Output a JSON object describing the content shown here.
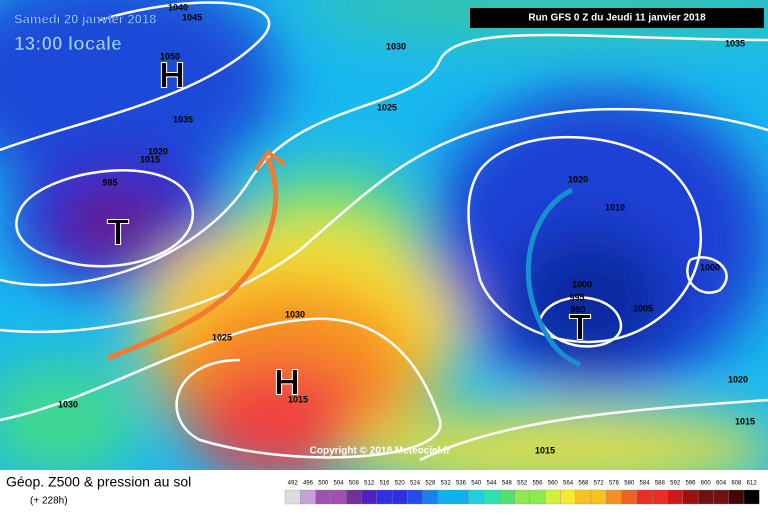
{
  "header": {
    "date": "Samedi 20 janvier 2018",
    "time": "13:00 locale",
    "run": "Run GFS 0 Z du Jeudi 11 janvier 2018"
  },
  "map": {
    "isobar_labels": [
      "1040",
      "1045",
      "1050",
      "1035",
      "1020",
      "1015",
      "985",
      "1030",
      "1025",
      "1035",
      "1020",
      "1010",
      "1000",
      "1000",
      "995",
      "990",
      "1005",
      "1030",
      "1025",
      "1030",
      "1015",
      "1020",
      "1015",
      "1015"
    ],
    "pressure_centers": [
      "H",
      "T",
      "H",
      "T"
    ],
    "copyright": "Copyright © 2018 Meteociel.fr"
  },
  "footer": {
    "title": "Géop. Z500 & pression au sol",
    "lead": "(+ 228h)",
    "scale": [
      492,
      496,
      500,
      504,
      508,
      512,
      516,
      520,
      524,
      528,
      532,
      536,
      540,
      544,
      548,
      552,
      556,
      560,
      564,
      568,
      572,
      576,
      580,
      584,
      588,
      592,
      596,
      600,
      604,
      608,
      612
    ]
  }
}
